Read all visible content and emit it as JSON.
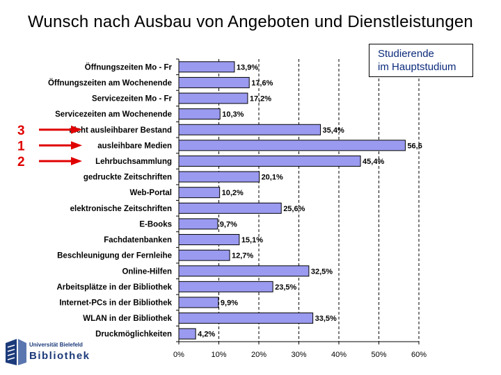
{
  "title": "Wunsch nach Ausbau von Angeboten und Dienstleistungen",
  "legend": {
    "line1": "Studierende",
    "line2": "im Hauptstudium"
  },
  "logo": {
    "line1": "Universität Bielefeld",
    "line2": "Bibliothek"
  },
  "colors": {
    "bar_fill": "#9a9af0",
    "bar_stroke": "#000000",
    "marker": "#e00000",
    "legend_text": "#0a2a7a"
  },
  "markers": [
    {
      "number": "3",
      "category_index": 4
    },
    {
      "number": "1",
      "category_index": 5
    },
    {
      "number": "2",
      "category_index": 6
    }
  ],
  "chart_data": {
    "type": "bar",
    "orientation": "horizontal",
    "title": "Wunsch nach Ausbau von Angeboten und Dienstleistungen",
    "categories": [
      "Öffnungszeiten Mo - Fr",
      "Öffnungszeiten am Wochenende",
      "Servicezeiten Mo - Fr",
      "Servicezeiten am Wochenende",
      "nicht ausleihbarer Bestand",
      "ausleihbare Medien",
      "Lehrbuchsammlung",
      "gedruckte Zeitschriften",
      "Web-Portal",
      "elektronische Zeitschriften",
      "E-Books",
      "Fachdatenbanken",
      "Beschleunigung der Fernleihe",
      "Online-Hilfen",
      "Arbeitsplätze in der Bibliothek",
      "Internet-PCs in der Bibliothek",
      "WLAN in der Bibliothek",
      "Druckmöglichkeiten"
    ],
    "values": [
      13.9,
      17.6,
      17.2,
      10.3,
      35.4,
      56.6,
      45.4,
      20.1,
      10.2,
      25.6,
      9.7,
      15.1,
      12.7,
      32.5,
      23.5,
      9.9,
      33.5,
      4.2
    ],
    "value_labels": [
      "13,9%",
      "17,6%",
      "17,2%",
      "10,3%",
      "35,4%",
      "56,6",
      "45,4%",
      "20,1%",
      "10,2%",
      "25,6%",
      "9,7%",
      "15,1%",
      "12,7%",
      "32,5%",
      "23,5%",
      "9,9%",
      "33,5%",
      "4,2%"
    ],
    "xlim": [
      0,
      60
    ],
    "xticks": [
      0,
      10,
      20,
      30,
      40,
      50,
      60
    ],
    "xtick_labels": [
      "0%",
      "10%",
      "20%",
      "30%",
      "40%",
      "50%",
      "60%"
    ],
    "grid": "vertical dashed",
    "legend": "top-right"
  }
}
